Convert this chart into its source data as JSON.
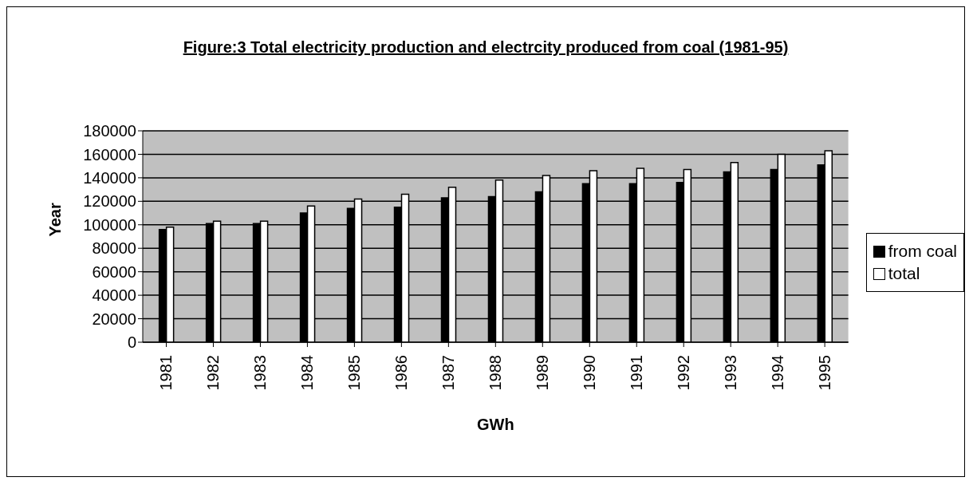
{
  "chart_data": {
    "type": "bar",
    "title": "Figure:3 Total electricity production and electrcity produced from coal (1981-95)",
    "xlabel": "GWh",
    "ylabel": "Year",
    "categories": [
      "1981",
      "1982",
      "1983",
      "1984",
      "1985",
      "1986",
      "1987",
      "1988",
      "1989",
      "1990",
      "1991",
      "1992",
      "1993",
      "1994",
      "1995"
    ],
    "series": [
      {
        "name": "from coal",
        "color": "#000000",
        "values": [
          96000,
          101000,
          101000,
          110000,
          114000,
          115000,
          123000,
          124000,
          128000,
          135000,
          135000,
          136000,
          145000,
          147000,
          151000
        ]
      },
      {
        "name": "total",
        "color": "#ffffff",
        "values": [
          98000,
          103000,
          103000,
          116000,
          122000,
          126000,
          132000,
          138000,
          142000,
          146000,
          148000,
          147000,
          153000,
          160000,
          163000
        ]
      }
    ],
    "ylim": [
      0,
      180000
    ],
    "yticks": [
      0,
      20000,
      40000,
      60000,
      80000,
      100000,
      120000,
      140000,
      160000,
      180000
    ],
    "grid": "y",
    "legend": "right"
  }
}
